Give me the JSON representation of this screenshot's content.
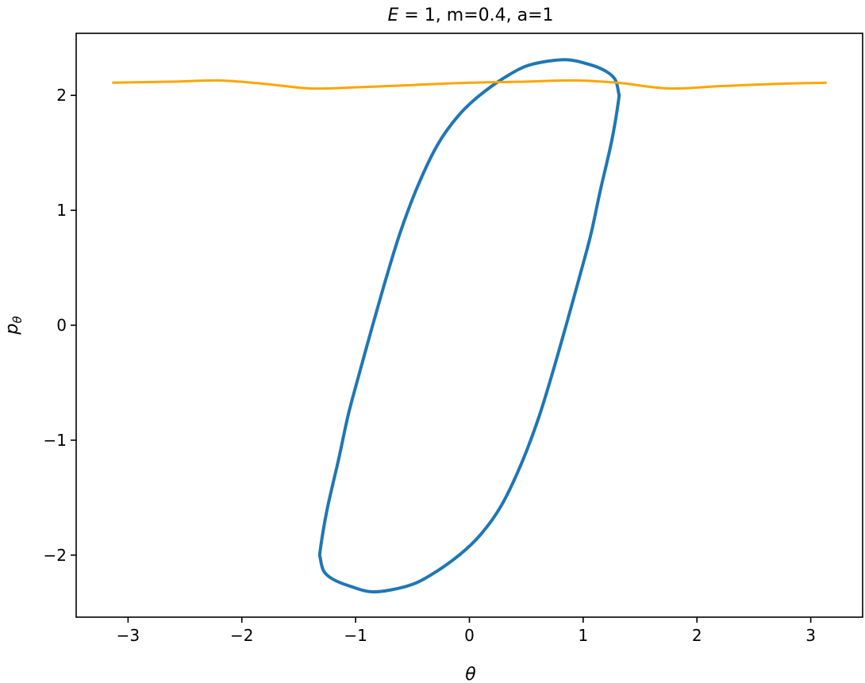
{
  "chart_data": {
    "type": "line",
    "title": {
      "italic_part": "E",
      "rest": " = 1, m=0.4, a=1"
    },
    "xlabel": "θ",
    "ylabel": {
      "base": "p",
      "sub": "θ"
    },
    "xlim": [
      -3.456,
      3.456
    ],
    "ylim": [
      -2.54,
      2.54
    ],
    "xticks": [
      -3,
      -2,
      -1,
      0,
      1,
      2,
      3
    ],
    "yticks": [
      -2,
      -1,
      0,
      1,
      2
    ],
    "xtick_labels": [
      "−3",
      "−2",
      "−1",
      "0",
      "1",
      "2",
      "3"
    ],
    "ytick_labels": [
      "−2",
      "−1",
      "0",
      "1",
      "2"
    ],
    "grid": false,
    "series": [
      {
        "color": "#1f77b4",
        "closed": true,
        "points": [
          [
            0.84,
            2.31
          ],
          [
            1.05,
            2.27
          ],
          [
            1.2,
            2.21
          ],
          [
            1.28,
            2.14
          ],
          [
            1.31,
            2.03
          ],
          [
            1.31,
            1.95
          ],
          [
            1.25,
            1.6
          ],
          [
            1.15,
            1.17
          ],
          [
            1.07,
            0.8
          ],
          [
            0.99,
            0.5
          ],
          [
            0.85,
            0.0
          ],
          [
            0.72,
            -0.45
          ],
          [
            0.6,
            -0.83
          ],
          [
            0.45,
            -1.22
          ],
          [
            0.28,
            -1.57
          ],
          [
            0.1,
            -1.82
          ],
          [
            -0.09,
            -2.0
          ],
          [
            -0.35,
            -2.18
          ],
          [
            -0.55,
            -2.27
          ],
          [
            -0.84,
            -2.32
          ],
          [
            -1.05,
            -2.27
          ],
          [
            -1.2,
            -2.21
          ],
          [
            -1.28,
            -2.14
          ],
          [
            -1.31,
            -2.03
          ],
          [
            -1.31,
            -1.95
          ],
          [
            -1.25,
            -1.6
          ],
          [
            -1.15,
            -1.17
          ],
          [
            -1.07,
            -0.8
          ],
          [
            -0.99,
            -0.5
          ],
          [
            -0.85,
            0.0
          ],
          [
            -0.72,
            0.45
          ],
          [
            -0.6,
            0.83
          ],
          [
            -0.45,
            1.22
          ],
          [
            -0.28,
            1.57
          ],
          [
            -0.1,
            1.82
          ],
          [
            0.09,
            2.0
          ],
          [
            0.35,
            2.18
          ],
          [
            0.55,
            2.27
          ]
        ]
      },
      {
        "color": "#ffa500",
        "closed": false,
        "points": [
          [
            -3.14,
            2.11
          ],
          [
            -2.6,
            2.12
          ],
          [
            -2.2,
            2.13
          ],
          [
            -1.8,
            2.1
          ],
          [
            -1.4,
            2.06
          ],
          [
            -1.0,
            2.07
          ],
          [
            -0.5,
            2.09
          ],
          [
            0,
            2.11
          ],
          [
            0.5,
            2.12
          ],
          [
            0.9,
            2.13
          ],
          [
            1.3,
            2.11
          ],
          [
            1.75,
            2.06
          ],
          [
            2.2,
            2.08
          ],
          [
            2.7,
            2.1
          ],
          [
            3.14,
            2.11
          ]
        ]
      }
    ]
  }
}
